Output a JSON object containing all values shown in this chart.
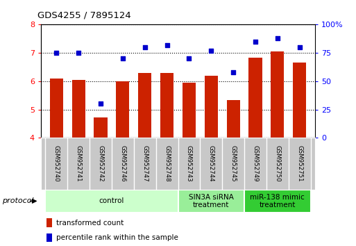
{
  "title": "GDS4255 / 7895124",
  "samples": [
    "GSM952740",
    "GSM952741",
    "GSM952742",
    "GSM952746",
    "GSM952747",
    "GSM952748",
    "GSM952743",
    "GSM952744",
    "GSM952745",
    "GSM952749",
    "GSM952750",
    "GSM952751"
  ],
  "transformed_count": [
    6.1,
    6.05,
    4.72,
    6.0,
    6.3,
    6.3,
    5.95,
    6.2,
    5.33,
    6.82,
    7.05,
    6.65
  ],
  "percentile_rank": [
    75,
    75,
    30,
    70,
    80,
    82,
    70,
    77,
    58,
    85,
    88,
    80
  ],
  "bar_color": "#cc2200",
  "dot_color": "#0000cc",
  "ylim_left": [
    4,
    8
  ],
  "ylim_right": [
    0,
    100
  ],
  "yticks_left": [
    4,
    5,
    6,
    7,
    8
  ],
  "yticks_right": [
    0,
    25,
    50,
    75,
    100
  ],
  "groups": [
    {
      "label": "control",
      "start": 0,
      "end": 6,
      "color": "#ccffcc"
    },
    {
      "label": "SIN3A siRNA\ntreatment",
      "start": 6,
      "end": 9,
      "color": "#99ee99"
    },
    {
      "label": "miR-138 mimic\ntreatment",
      "start": 9,
      "end": 12,
      "color": "#33cc33"
    }
  ],
  "protocol_label": "protocol",
  "legend_bar_label": "transformed count",
  "legend_dot_label": "percentile rank within the sample",
  "tick_label_area_color": "#c8c8c8",
  "background_color": "#ffffff"
}
